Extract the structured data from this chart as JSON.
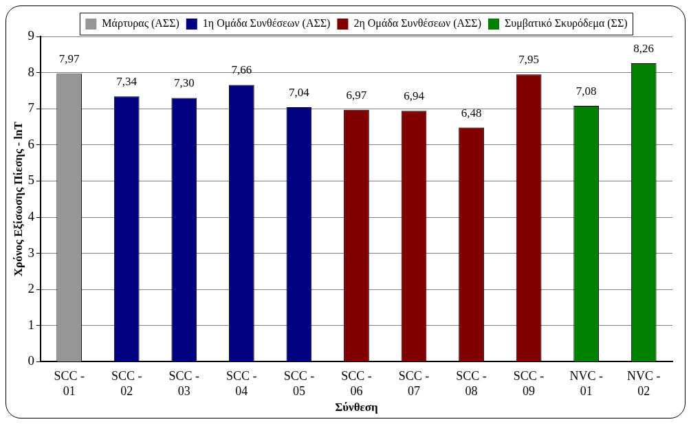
{
  "chart_data": {
    "type": "bar",
    "xlabel": "Σύνθεση",
    "ylabel": "Χρόνος Εξίσωσης Πίεσης - lnT",
    "categories": [
      "SCC - 01",
      "SCC - 02",
      "SCC - 03",
      "SCC - 04",
      "SCC - 05",
      "SCC - 06",
      "SCC - 07",
      "SCC - 08",
      "SCC - 09",
      "NVC - 01",
      "NVC - 02"
    ],
    "series": [
      {
        "name": "Μάρτυρας (ΑΣΣ)",
        "color": "#969696",
        "values": [
          7.97,
          null,
          null,
          null,
          null,
          null,
          null,
          null,
          null,
          null,
          null
        ],
        "value_labels": [
          "7,97",
          null,
          null,
          null,
          null,
          null,
          null,
          null,
          null,
          null,
          null
        ]
      },
      {
        "name": "1η Ομάδα Συνθέσεων (ΑΣΣ)",
        "color": "#000080",
        "values": [
          null,
          7.34,
          7.3,
          7.66,
          7.04,
          null,
          null,
          null,
          null,
          null,
          null
        ],
        "value_labels": [
          null,
          "7,34",
          "7,30",
          "7,66",
          "7,04",
          null,
          null,
          null,
          null,
          null,
          null
        ]
      },
      {
        "name": "2η Ομάδα Συνθέσεων (ΑΣΣ)",
        "color": "#800000",
        "values": [
          null,
          null,
          null,
          null,
          null,
          6.97,
          6.94,
          6.48,
          7.95,
          null,
          null
        ],
        "value_labels": [
          null,
          null,
          null,
          null,
          null,
          "6,97",
          "6,94",
          "6,48",
          "7,95",
          null,
          null
        ]
      },
      {
        "name": "Συμβατικό Σκυρόδεμα (ΣΣ)",
        "color": "#008000",
        "values": [
          null,
          null,
          null,
          null,
          null,
          null,
          null,
          null,
          null,
          7.08,
          8.26
        ],
        "value_labels": [
          null,
          null,
          null,
          null,
          null,
          null,
          null,
          null,
          null,
          "7,08",
          "8,26"
        ]
      }
    ],
    "ylim": [
      0,
      9
    ],
    "yticks": [
      0,
      1,
      2,
      3,
      4,
      5,
      6,
      7,
      8,
      9
    ],
    "grid": "y",
    "legend": "top right"
  }
}
